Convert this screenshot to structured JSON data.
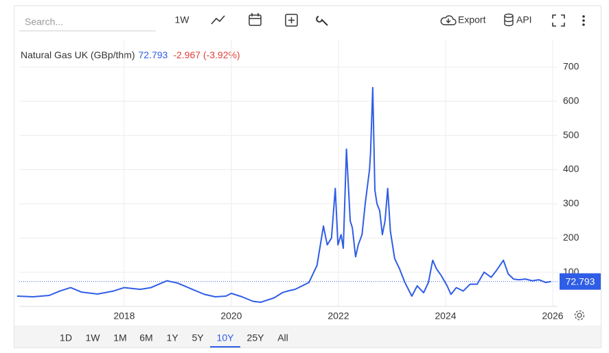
{
  "toolbar": {
    "search_placeholder": "Search...",
    "interval": "1W",
    "export": "Export",
    "api": "API"
  },
  "chart_data": {
    "type": "line",
    "title": "Natural Gas UK (GBp/thm)",
    "last_value": 72.793,
    "change_label": "-2.967 (-3.92%)",
    "color": "#2f5de6",
    "x": [
      2016.0,
      2016.3,
      2016.6,
      2016.8,
      2017.0,
      2017.2,
      2017.5,
      2017.8,
      2018.0,
      2018.3,
      2018.5,
      2018.8,
      2019.0,
      2019.3,
      2019.5,
      2019.7,
      2019.9,
      2020.0,
      2020.2,
      2020.4,
      2020.55,
      2020.8,
      2020.95,
      2021.05,
      2021.19,
      2021.32,
      2021.45,
      2021.6,
      2021.72,
      2021.79,
      2021.87,
      2021.94,
      2021.99,
      2022.05,
      2022.09,
      2022.15,
      2022.22,
      2022.26,
      2022.32,
      2022.37,
      2022.44,
      2022.5,
      2022.58,
      2022.6,
      2022.64,
      2022.68,
      2022.72,
      2022.77,
      2022.82,
      2022.87,
      2022.92,
      2022.97,
      2023.05,
      2023.14,
      2023.24,
      2023.37,
      2023.47,
      2023.59,
      2023.68,
      2023.76,
      2023.83,
      2023.92,
      2024.03,
      2024.1,
      2024.2,
      2024.33,
      2024.46,
      2024.59,
      2024.72,
      2024.85,
      2024.95,
      2025.08,
      2025.17,
      2025.27,
      2025.37,
      2025.49,
      2025.62,
      2025.74,
      2025.87,
      2025.97
    ],
    "values": [
      30,
      28,
      32,
      45,
      55,
      42,
      36,
      45,
      55,
      50,
      55,
      75,
      68,
      48,
      35,
      28,
      30,
      38,
      28,
      15,
      12,
      25,
      40,
      45,
      50,
      60,
      70,
      120,
      235,
      180,
      200,
      345,
      180,
      210,
      170,
      460,
      250,
      230,
      145,
      180,
      210,
      300,
      400,
      450,
      640,
      340,
      300,
      280,
      210,
      250,
      345,
      220,
      140,
      110,
      70,
      30,
      60,
      40,
      70,
      135,
      110,
      90,
      60,
      35,
      55,
      45,
      65,
      65,
      100,
      85,
      105,
      135,
      95,
      80,
      78,
      80,
      75,
      78,
      70,
      72.793
    ],
    "xlim": [
      2016.04,
      2026.09
    ],
    "ylim": [
      0,
      780
    ],
    "xticks": [
      2018,
      2020,
      2022,
      2024,
      2026
    ],
    "yticks": [
      100,
      200,
      300,
      400,
      500,
      600,
      700
    ],
    "grid": true
  },
  "ranges": {
    "items": [
      "1D",
      "1W",
      "1M",
      "6M",
      "1Y",
      "5Y",
      "10Y",
      "25Y",
      "All"
    ],
    "active": 6
  }
}
